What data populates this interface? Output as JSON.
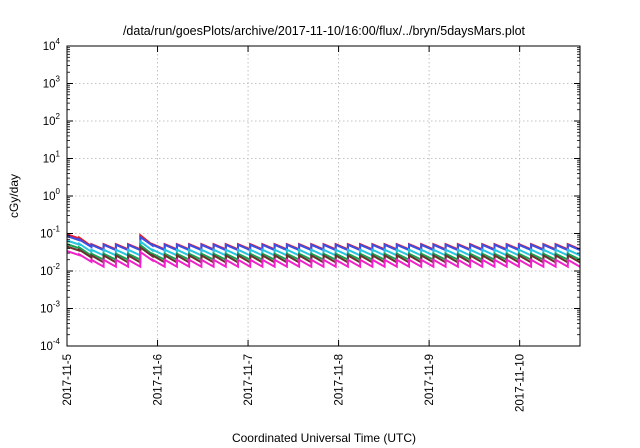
{
  "chart_data": {
    "type": "line",
    "title": "/data/run/goesPlots/archive/2017-11-10/16:00/flux/../bryn/5daysMars.plot",
    "xlabel": "Coordinated Universal Time (UTC)",
    "ylabel": "cGy/day",
    "yscale": "log",
    "ylim": [
      0.0001,
      10000
    ],
    "xlim": [
      "2017-11-05T00:00",
      "2017-11-10T16:00"
    ],
    "y_ticks": [
      {
        "base": "10",
        "exp": "4"
      },
      {
        "base": "10",
        "exp": "3"
      },
      {
        "base": "10",
        "exp": "2"
      },
      {
        "base": "10",
        "exp": "1"
      },
      {
        "base": "10",
        "exp": "0"
      },
      {
        "base": "10",
        "exp": "-1"
      },
      {
        "base": "10",
        "exp": "-2"
      },
      {
        "base": "10",
        "exp": "-3"
      },
      {
        "base": "10",
        "exp": "-4"
      }
    ],
    "x_ticks": [
      "2017-11-5",
      "2017-11-6",
      "2017-11-7",
      "2017-11-8",
      "2017-11-9",
      "2017-11-10"
    ],
    "grid": true,
    "legend": "none",
    "sawtooth_cycles": 42,
    "bump_at": "2017-11-05T20:00",
    "series": [
      {
        "color": "#e8192c",
        "start": 0.095,
        "peak": 0.052,
        "trough": 0.038
      },
      {
        "color": "#3b4fe0",
        "start": 0.085,
        "peak": 0.05,
        "trough": 0.036
      },
      {
        "color": "#26c4e0",
        "start": 0.065,
        "peak": 0.037,
        "trough": 0.026
      },
      {
        "color": "#1aa152",
        "start": 0.052,
        "peak": 0.029,
        "trough": 0.02
      },
      {
        "color": "#6b3030",
        "start": 0.045,
        "peak": 0.026,
        "trough": 0.017
      },
      {
        "color": "#ee22c8",
        "start": 0.034,
        "peak": 0.02,
        "trough": 0.013
      }
    ]
  }
}
